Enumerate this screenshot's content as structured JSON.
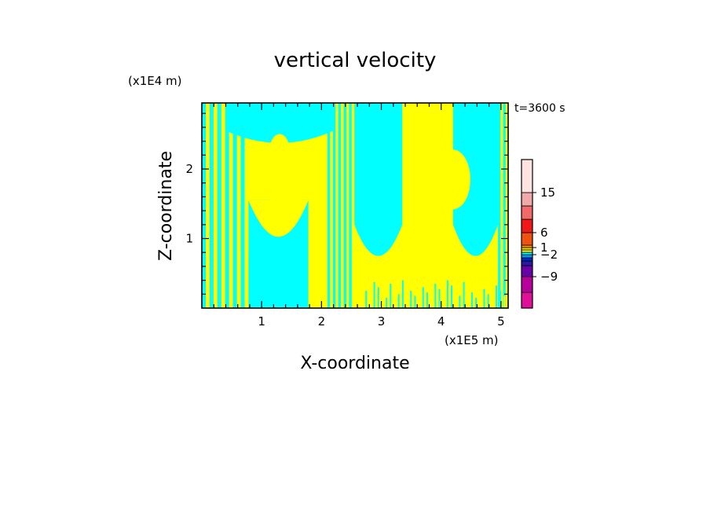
{
  "chart_data": {
    "type": "heatmap",
    "title": "vertical velocity",
    "xlabel": "X-coordinate",
    "ylabel": "Z-coordinate",
    "x_unit": "(x1E5 m)",
    "y_unit": "(x1E4 m)",
    "time_label": "t=3600 s",
    "x_range": [
      0,
      5.12
    ],
    "y_range": [
      0,
      2.95
    ],
    "x_ticks": [
      1,
      2,
      3,
      4,
      5
    ],
    "y_ticks": [
      1,
      2
    ],
    "colorbar": {
      "tick_labels": [
        "15",
        "6",
        "1",
        "−2",
        "−9"
      ],
      "tick_values": [
        15,
        6,
        1,
        -2,
        -9
      ],
      "colors": [
        "#e0109a",
        "#b8009a",
        "#6a00a8",
        "#2818a8",
        "#0028c8",
        "#0098f0",
        "#00ffff",
        "#ffff00",
        "#ffd800",
        "#ff9800",
        "#f05010",
        "#f01818",
        "#f06a6a",
        "#f0a8a8",
        "#fde4e0"
      ],
      "class_heights": [
        20,
        20,
        14,
        6,
        4,
        4,
        3,
        3,
        3,
        3,
        16,
        17,
        17,
        17,
        42
      ]
    },
    "field_colors": {
      "positive": "#ffff00",
      "negative": "#00ffff"
    },
    "regions": {
      "negative_columns_x": [
        [
          0.78,
          1.78
        ],
        [
          2.55,
          3.35
        ],
        [
          4.2,
          4.95
        ]
      ],
      "positive_columns_x": [
        [
          1.78,
          2.1
        ],
        [
          3.35,
          4.2
        ]
      ],
      "blobs_center": [
        [
          1.4,
          1.7
        ],
        [
          4.2,
          1.85
        ],
        [
          1.3,
          2.3
        ],
        [
          3.8,
          2.1
        ]
      ]
    }
  }
}
